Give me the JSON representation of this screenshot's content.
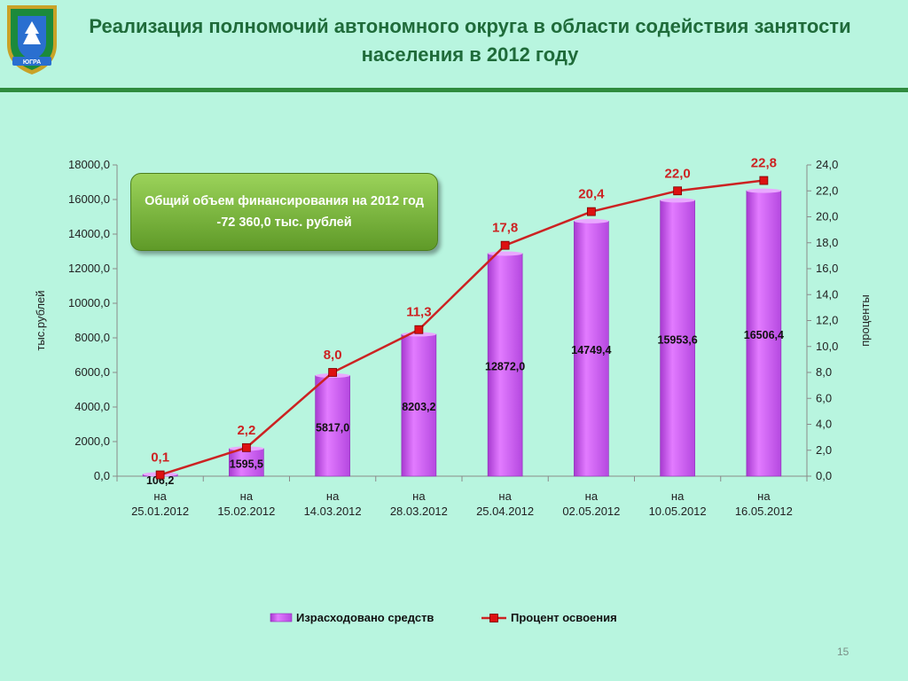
{
  "header": {
    "title": "Реализация полномочий автономного округа в области содействия занятости населения в 2012 году"
  },
  "logo": {
    "text": "ЮГРА",
    "colors": {
      "shield": "#1b8a3c",
      "border": "#c9a227",
      "inner": "#2a6fd0"
    }
  },
  "callout": {
    "text": "Общий объем финансирования на 2012 год -72 360,0 тыс. рублей"
  },
  "page_number": "15",
  "colors": {
    "bar": "#cc55ee",
    "line": "#cc2222",
    "marker": "#dd1111",
    "title": "#1f6b3a",
    "rule": "#2e8b3e",
    "point_label": "#cc2222"
  },
  "chart_data": {
    "type": "bar",
    "categories": [
      [
        "на",
        "25.01.2012"
      ],
      [
        "на",
        "15.02.2012"
      ],
      [
        "на",
        "14.03.2012"
      ],
      [
        "на",
        "28.03.2012"
      ],
      [
        "на",
        "25.04.2012"
      ],
      [
        "на",
        "02.05.2012"
      ],
      [
        "на",
        "10.05.2012"
      ],
      [
        "на",
        "16.05.2012"
      ]
    ],
    "series": [
      {
        "name": "Израсходовано  средств",
        "type": "bar",
        "axis": "left",
        "values": [
          106.2,
          1595.5,
          5817.0,
          8203.2,
          12872.0,
          14749.4,
          15953.6,
          16506.4
        ],
        "labels": [
          "106,2",
          "1595,5",
          "5817,0",
          "8203,2",
          "12872,0",
          "14749,4",
          "15953,6",
          "16506,4"
        ]
      },
      {
        "name": "Процент освоения",
        "type": "line",
        "axis": "right",
        "values": [
          0.1,
          2.2,
          8.0,
          11.3,
          17.8,
          20.4,
          22.0,
          22.8
        ],
        "labels": [
          "0,1",
          "2,2",
          "8,0",
          "11,3",
          "17,8",
          "20,4",
          "22,0",
          "22,8"
        ]
      }
    ],
    "ylabel": "тыс.рублей",
    "y2label": "проценты",
    "ylim": [
      0,
      18000
    ],
    "y2lim": [
      0,
      24
    ],
    "yticks": [
      "0,0",
      "2000,0",
      "4000,0",
      "6000,0",
      "8000,0",
      "10000,0",
      "12000,0",
      "14000,0",
      "16000,0",
      "18000,0"
    ],
    "y2ticks": [
      "0,0",
      "2,0",
      "4,0",
      "6,0",
      "8,0",
      "10,0",
      "12,0",
      "14,0",
      "16,0",
      "18,0",
      "20,0",
      "22,0",
      "24,0"
    ],
    "legend_position": "bottom",
    "grid": false
  }
}
